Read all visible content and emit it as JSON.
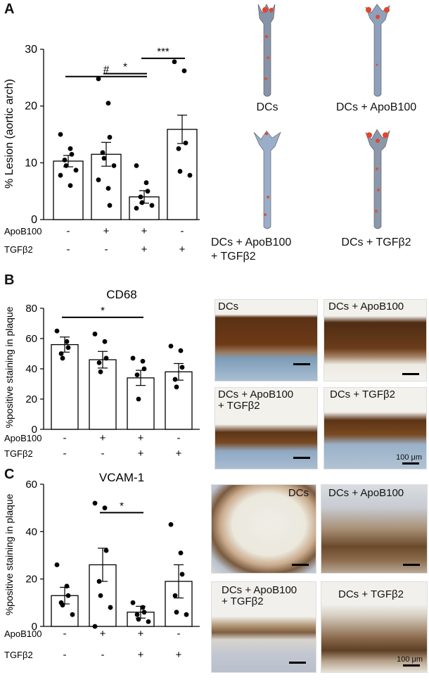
{
  "panels": {
    "a": {
      "letter": "A"
    },
    "b": {
      "letter": "B"
    },
    "c": {
      "letter": "C"
    }
  },
  "row_labels": {
    "apob": "ApoB100",
    "tgf": "TGFβ2"
  },
  "signs": {
    "apob": [
      "-",
      "+",
      "+",
      "-"
    ],
    "tgf": [
      "-",
      "-",
      "+",
      "+"
    ]
  },
  "aorta_captions": {
    "dcs": "DCs",
    "apob": "DCs + ApoB100",
    "apob_tgf_1": "DCs + ApoB100",
    "apob_tgf_2": "+ TGFβ2",
    "tgf": "DCs + TGFβ2"
  },
  "photo_labels_b": {
    "dcs": "DCs",
    "apob": "DCs + ApoB100",
    "combo_1": "DCs + ApoB100",
    "combo_2": "+ TGFβ2",
    "tgf": "DCs + TGFβ2",
    "scale": "100 μm"
  },
  "photo_labels_c": {
    "dcs": "DCs",
    "apob": "DCs + ApoB100",
    "combo_1": "DCs + ApoB100",
    "combo_2": "+ TGFβ2",
    "tgf": "DCs + TGFβ2",
    "scale": "100 μm"
  },
  "chart_data": [
    {
      "type": "bar",
      "title": "",
      "ylabel": "% Lesion (aortic arch)",
      "ylim": [
        0,
        30
      ],
      "yticks": [
        "0",
        "10",
        "20",
        "30"
      ],
      "categories": [
        "DCs",
        "DCs + ApoB100",
        "DCs + ApoB100 + TGFβ2",
        "DCs + TGFβ2"
      ],
      "values": [
        10.3,
        11.5,
        4.0,
        15.9
      ],
      "errors": [
        1.0,
        2.1,
        1.1,
        2.5
      ],
      "points": [
        [
          15.0,
          12.5,
          11.5,
          10.5,
          9.5,
          8.7,
          7.8,
          6.0
        ],
        [
          24.8,
          20.5,
          14.5,
          11.8,
          10.8,
          9.5,
          7.0,
          5.5,
          2.5
        ],
        [
          9.5,
          6.5,
          5.0,
          4.0,
          3.0,
          2.5,
          2.0
        ],
        [
          27.8,
          26.2,
          13.5,
          12.5,
          8.5,
          7.8
        ]
      ],
      "sig": [
        {
          "from": 0,
          "to": 2,
          "label": "#",
          "y": 25.2
        },
        {
          "from": 1,
          "to": 2,
          "label": "*",
          "y": 25.7
        },
        {
          "from": 2,
          "to": 3,
          "label": "***",
          "y": 28.4
        }
      ]
    },
    {
      "type": "bar",
      "title": "CD68",
      "ylabel": "%positive staining in plaque",
      "ylim": [
        0,
        80
      ],
      "yticks": [
        "0",
        "20",
        "40",
        "60",
        "80"
      ],
      "categories": [
        "DCs",
        "DCs + ApoB100",
        "DCs + ApoB100 + TGFβ2",
        "DCs + TGFβ2"
      ],
      "values": [
        56,
        46,
        34,
        38
      ],
      "errors": [
        5,
        5.5,
        5,
        5.5
      ],
      "points": [
        [
          65,
          58,
          54,
          50,
          47
        ],
        [
          63,
          58,
          47,
          44,
          38
        ],
        [
          47,
          45,
          40,
          36,
          20
        ],
        [
          55,
          52,
          41,
          33,
          28
        ]
      ],
      "sig": [
        {
          "from": 0,
          "to": 2,
          "label": "*",
          "y": 74
        }
      ]
    },
    {
      "type": "bar",
      "title": "VCAM-1",
      "ylabel": "%positive staining in plaque",
      "ylim": [
        0,
        60
      ],
      "yticks": [
        "0",
        "20",
        "40",
        "60"
      ],
      "categories": [
        "DCs",
        "DCs + ApoB100",
        "DCs + ApoB100 + TGFβ2",
        "DCs + TGFβ2"
      ],
      "values": [
        13,
        26,
        6,
        19
      ],
      "errors": [
        3.5,
        7,
        2.5,
        7
      ],
      "points": [
        [
          26,
          17,
          13,
          10,
          9,
          5
        ],
        [
          52,
          50,
          32,
          19,
          13,
          8,
          0
        ],
        [
          10,
          8,
          6,
          5,
          3,
          2
        ],
        [
          43,
          31,
          22,
          13,
          6,
          5
        ]
      ],
      "sig": [
        {
          "from": 1,
          "to": 2,
          "label": "*",
          "y": 48
        }
      ]
    }
  ]
}
